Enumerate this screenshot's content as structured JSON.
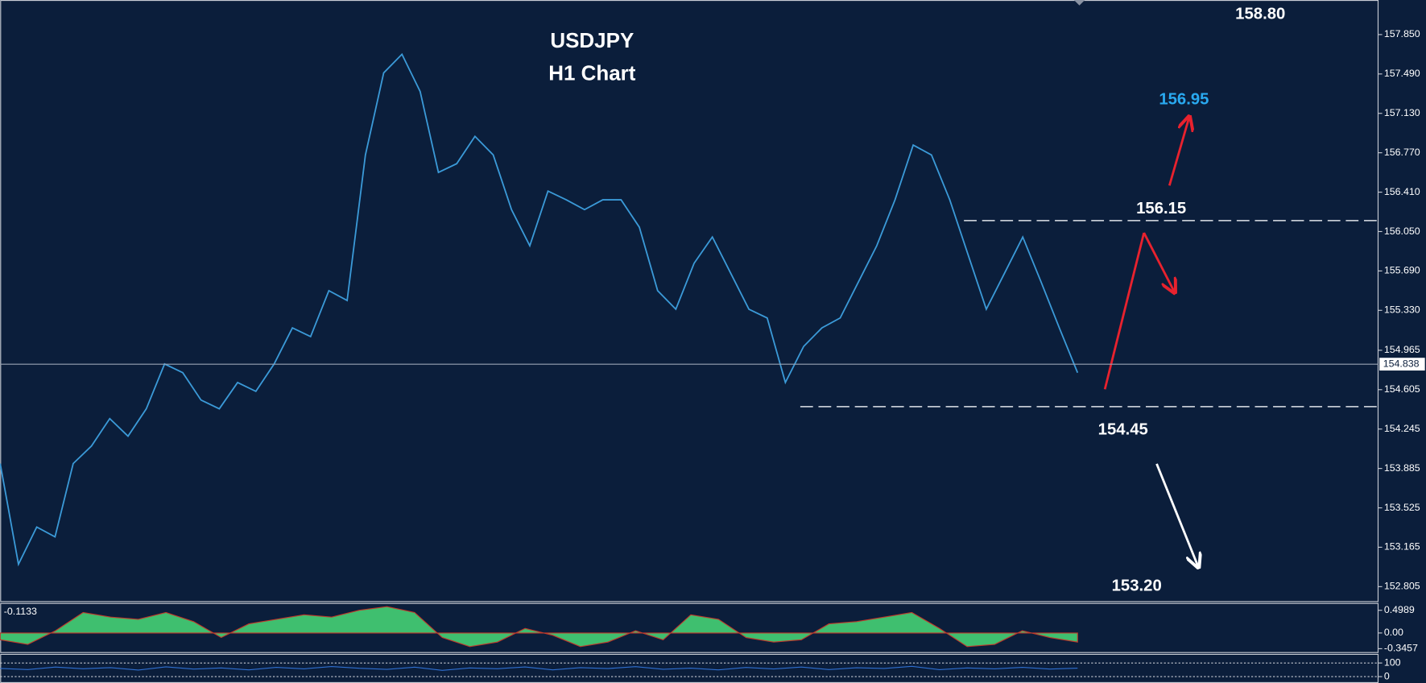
{
  "chart_data": [
    {
      "type": "line",
      "title": "USDJPY",
      "subtitle": "H1 Chart",
      "color": "#3b9ad8",
      "values": [
        153.93,
        153.01,
        153.35,
        153.26,
        153.93,
        154.09,
        154.34,
        154.18,
        154.43,
        154.84,
        154.76,
        154.51,
        154.43,
        154.67,
        154.59,
        154.84,
        155.17,
        155.09,
        155.51,
        155.42,
        156.75,
        157.5,
        157.67,
        157.33,
        156.59,
        156.67,
        156.92,
        156.75,
        156.25,
        155.92,
        156.42,
        156.34,
        156.25,
        156.34,
        156.34,
        156.09,
        155.51,
        155.34,
        155.76,
        156.0,
        155.67,
        155.34,
        155.26,
        154.67,
        155.0,
        155.17,
        155.26,
        155.59,
        155.92,
        156.34,
        156.84,
        156.75,
        156.34,
        155.84,
        155.34,
        155.67,
        156.0,
        155.59,
        155.17,
        154.76
      ],
      "ylim": [
        152.664,
        158.166
      ],
      "yticks": [
        {
          "value": 157.85,
          "label": "157.850"
        },
        {
          "value": 157.49,
          "label": "157.490"
        },
        {
          "value": 157.13,
          "label": "157.130"
        },
        {
          "value": 156.77,
          "label": "156.770"
        },
        {
          "value": 156.41,
          "label": "156.410"
        },
        {
          "value": 156.05,
          "label": "156.050"
        },
        {
          "value": 155.69,
          "label": "155.690"
        },
        {
          "value": 155.33,
          "label": "155.330"
        },
        154.965,
        154.605,
        154.245,
        153.885,
        153.525,
        153.165,
        152.805
      ],
      "current_price": 154.838,
      "annotations": [
        {
          "value": 158.8,
          "label": "158.80"
        },
        156.95,
        156.15,
        154.45,
        {
          "value": 153.2,
          "label": "153.20"
        }
      ],
      "annotation_colors": [
        "#ffffff",
        "#29a9f0",
        "#ffffff",
        "#ffffff",
        "#ffffff"
      ]
    },
    {
      "type": "area",
      "color": "#3fbf6f",
      "current_value": -0.1133,
      "values": [
        -0.15,
        -0.25,
        0.05,
        0.45,
        0.35,
        0.3,
        0.45,
        0.25,
        -0.1,
        0.2,
        0.3,
        0.4,
        0.35,
        0.5,
        0.58,
        0.45,
        -0.1,
        -0.3,
        -0.2,
        0.1,
        -0.05,
        -0.3,
        -0.2,
        0.05,
        -0.15,
        0.4,
        0.3,
        -0.1,
        -0.2,
        -0.15,
        0.2,
        0.25,
        0.35,
        0.45,
        0.1,
        -0.3,
        -0.25,
        0.05,
        -0.1,
        -0.2
      ],
      "ylim": [
        -0.44,
        0.66
      ],
      "yticks": [
        0.4989,
        {
          "value": 0,
          "label": "0.00"
        },
        -0.3457
      ]
    },
    {
      "type": "line",
      "color": "#2f6fd0",
      "values": [
        60,
        52,
        70,
        58,
        66,
        48,
        72,
        55,
        63,
        50,
        68,
        57,
        74,
        61,
        53,
        69,
        46,
        64,
        58,
        71,
        50,
        66,
        59,
        73,
        54,
        62,
        49,
        67,
        56,
        70,
        52,
        65,
        60,
        75,
        51,
        63,
        57,
        68,
        55,
        62
      ],
      "ylim": [
        -46.7,
        160
      ],
      "yticks": [
        100,
        0
      ]
    }
  ]
}
